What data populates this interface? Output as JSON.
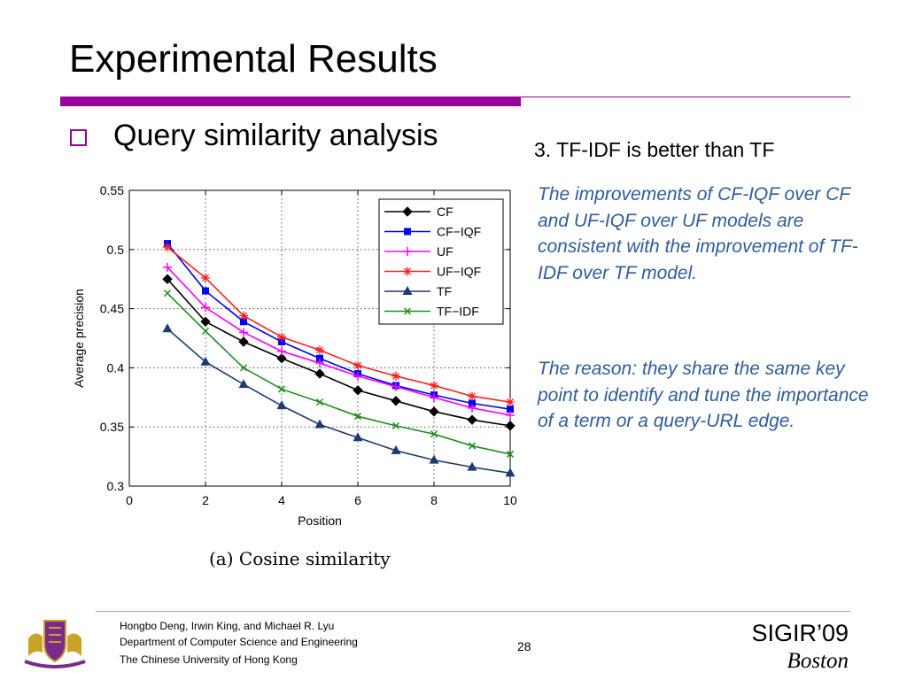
{
  "slide": {
    "title": "Experimental Results",
    "bullet": "Query similarity analysis",
    "point_heading": "3. TF-IDF is better than TF",
    "paragraph1": "The improvements of CF-IQF over CF and UF-IQF over UF models are consistent with the improvement of TF-IDF over TF model.",
    "paragraph2": "The reason: they share the same key point to identify and tune the importance of a term or a query-URL edge.",
    "caption": "(a)  Cosine similarity",
    "accent_color": "#990099",
    "paragraph_color": "#2e5d9e"
  },
  "footer": {
    "authors": "Hongbo Deng, Irwin King, and Michael R. Lyu",
    "department": "Department of Computer Science and Engineering",
    "university": "The Chinese University of Hong Kong",
    "page_number": "28",
    "conference": "SIGIR’09",
    "city": "Boston",
    "logo_icon": "university-crest-icon"
  },
  "chart_data": {
    "type": "line",
    "title": "",
    "xlabel": "Position",
    "ylabel": "Average precision",
    "xlim": [
      0,
      10
    ],
    "ylim": [
      0.3,
      0.55
    ],
    "xticks": [
      0,
      2,
      4,
      6,
      8,
      10
    ],
    "yticks": [
      0.3,
      0.35,
      0.4,
      0.45,
      0.5,
      0.55
    ],
    "ytick_labels": [
      "0.3",
      "0.35",
      "0.4",
      "0.45",
      "0.5",
      "0.55"
    ],
    "grid": true,
    "legend_position": "top-right",
    "x": [
      1,
      2,
      3,
      4,
      5,
      6,
      7,
      8,
      9,
      10
    ],
    "series": [
      {
        "name": "CF",
        "color": "#000000",
        "marker": "diamond",
        "values": [
          0.475,
          0.439,
          0.422,
          0.408,
          0.395,
          0.381,
          0.372,
          0.363,
          0.356,
          0.351
        ]
      },
      {
        "name": "CF−IQF",
        "color": "#0000ff",
        "marker": "square",
        "values": [
          0.505,
          0.465,
          0.439,
          0.422,
          0.408,
          0.395,
          0.385,
          0.377,
          0.37,
          0.365
        ]
      },
      {
        "name": "UF",
        "color": "#ff00ff",
        "marker": "plus",
        "values": [
          0.485,
          0.451,
          0.43,
          0.414,
          0.404,
          0.393,
          0.384,
          0.375,
          0.366,
          0.36
        ]
      },
      {
        "name": "UF−IQF",
        "color": "#ff2020",
        "marker": "star",
        "values": [
          0.502,
          0.476,
          0.444,
          0.426,
          0.415,
          0.402,
          0.393,
          0.385,
          0.376,
          0.371
        ]
      },
      {
        "name": "TF",
        "color": "#1f3a70",
        "marker": "triangle",
        "values": [
          0.433,
          0.405,
          0.386,
          0.368,
          0.352,
          0.341,
          0.33,
          0.322,
          0.316,
          0.311
        ]
      },
      {
        "name": "TF−IDF",
        "color": "#1e8c1e",
        "marker": "x",
        "values": [
          0.463,
          0.431,
          0.4,
          0.382,
          0.371,
          0.359,
          0.351,
          0.344,
          0.334,
          0.327
        ]
      }
    ]
  }
}
